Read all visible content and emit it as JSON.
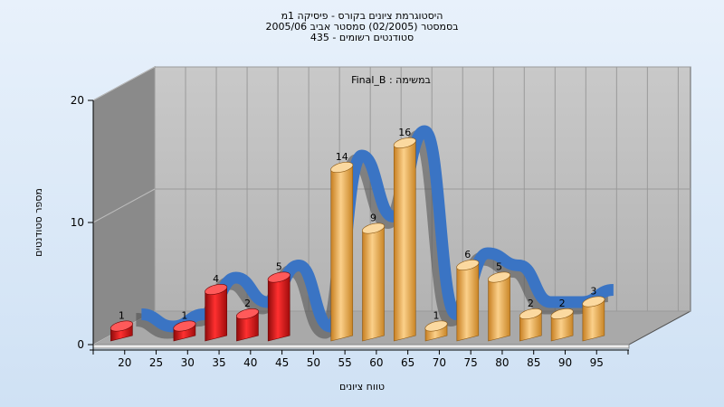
{
  "title_lines": [
    "היסטוגרמת ציונים בקורס - פיסיקה 1מ",
    "בסמסטר  (02/2005)  סמסטר אביב 2005/06",
    "סטודנטים רשומים - 435"
  ],
  "chart_data": {
    "type": "bar",
    "subtitle": "במשימה : Final_B",
    "xlabel": "טווח ציונים",
    "ylabel": "מספר סטודנטים",
    "ylim": [
      0,
      20
    ],
    "yticks": [
      0,
      10,
      20
    ],
    "xticks": [
      "20",
      "25",
      "30",
      "35",
      "40",
      "45",
      "50",
      "55",
      "60",
      "65",
      "70",
      "75",
      "80",
      "85",
      "90",
      "95"
    ],
    "bars": [
      {
        "bin": "15-20",
        "value": 1
      },
      {
        "bin": "20-25",
        "value": 0
      },
      {
        "bin": "25-30",
        "value": 1
      },
      {
        "bin": "30-35",
        "value": 4
      },
      {
        "bin": "35-40",
        "value": 2
      },
      {
        "bin": "40-45",
        "value": 5
      },
      {
        "bin": "45-50",
        "value": 0
      },
      {
        "bin": "50-55",
        "value": 14
      },
      {
        "bin": "55-60",
        "value": 9
      },
      {
        "bin": "60-65",
        "value": 16
      },
      {
        "bin": "65-70",
        "value": 1
      },
      {
        "bin": "70-75",
        "value": 6
      },
      {
        "bin": "75-80",
        "value": 5
      },
      {
        "bin": "80-85",
        "value": 2
      },
      {
        "bin": "85-90",
        "value": 2
      },
      {
        "bin": "90-95",
        "value": 3
      }
    ],
    "fail_threshold": 45,
    "colors": {
      "fail_bar": "#dd1a1a",
      "pass_bar": "#e8a94a",
      "ribbon": "#3a74c4",
      "back_wall": "#b9b9b9",
      "side_wall": "#8a8a8a",
      "floor": "#a9a9a9"
    },
    "grid": true
  }
}
